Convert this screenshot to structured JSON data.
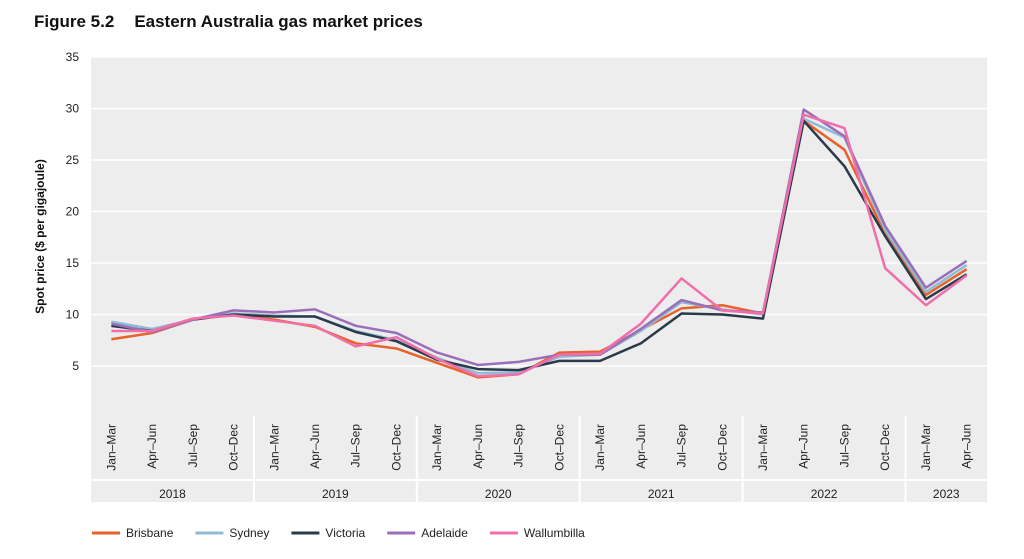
{
  "figure_number": "Figure 5.2",
  "chart_data": {
    "type": "line",
    "title": "Eastern Australia gas market prices",
    "ylabel": "Spot price ($ per gigajoule)",
    "xlabel": "",
    "ylim": [
      0,
      35
    ],
    "yticks": [
      5,
      10,
      15,
      20,
      25,
      30,
      35
    ],
    "grid": "horizontal",
    "legend": "bottom-left",
    "x": [
      "Jan–Mar",
      "Apr–Jun",
      "Jul–Sep",
      "Oct–Dec",
      "Jan–Mar",
      "Apr–Jun",
      "Jul–Sep",
      "Oct–Dec",
      "Jan–Mar",
      "Apr–Jun",
      "Jul–Sep",
      "Oct–Dec",
      "Jan–Mar",
      "Apr–Jun",
      "Jul–Sep",
      "Oct–Dec",
      "Jan–Mar",
      "Apr–Jun",
      "Jul–Sep",
      "Oct–Dec",
      "Jan–Mar",
      "Apr–Jun"
    ],
    "years": [
      {
        "label": "2018",
        "count": 4
      },
      {
        "label": "2019",
        "count": 4
      },
      {
        "label": "2020",
        "count": 4
      },
      {
        "label": "2021",
        "count": 4
      },
      {
        "label": "2022",
        "count": 4
      },
      {
        "label": "2023",
        "count": 2
      }
    ],
    "series": [
      {
        "name": "Brisbane",
        "color": "#e8622a",
        "values": [
          7.6,
          8.2,
          9.5,
          10.0,
          9.5,
          8.8,
          7.2,
          6.7,
          5.3,
          3.9,
          4.2,
          6.3,
          6.4,
          8.5,
          10.6,
          10.9,
          10.1,
          28.8,
          26.0,
          17.8,
          11.9,
          14.4
        ]
      },
      {
        "name": "Sydney",
        "color": "#8fbcd4",
        "values": [
          9.3,
          8.6,
          9.5,
          10.1,
          9.9,
          9.8,
          8.4,
          7.5,
          5.8,
          4.3,
          4.4,
          5.9,
          6.1,
          8.4,
          11.2,
          10.5,
          10.0,
          29.0,
          27.2,
          18.2,
          12.2,
          14.8
        ]
      },
      {
        "name": "Victoria",
        "color": "#2b3a4a",
        "values": [
          8.9,
          8.4,
          9.5,
          10.0,
          9.8,
          9.8,
          8.3,
          7.4,
          5.6,
          4.7,
          4.6,
          5.5,
          5.5,
          7.2,
          10.1,
          10.0,
          9.6,
          28.8,
          24.4,
          17.6,
          11.5,
          13.9
        ]
      },
      {
        "name": "Adelaide",
        "color": "#9b6fb8",
        "values": [
          9.1,
          8.3,
          9.5,
          10.4,
          10.2,
          10.5,
          8.9,
          8.2,
          6.3,
          5.1,
          5.4,
          6.1,
          6.1,
          8.6,
          11.4,
          10.4,
          10.2,
          29.9,
          27.3,
          18.6,
          12.6,
          15.2
        ]
      },
      {
        "name": "Wallumbilla",
        "color": "#f06ea9",
        "values": [
          8.4,
          8.4,
          9.6,
          9.9,
          9.4,
          8.9,
          6.9,
          7.8,
          5.7,
          4.0,
          4.2,
          6.1,
          6.2,
          9.1,
          13.5,
          10.4,
          10.1,
          29.4,
          28.1,
          14.5,
          10.9,
          13.8
        ]
      }
    ]
  }
}
